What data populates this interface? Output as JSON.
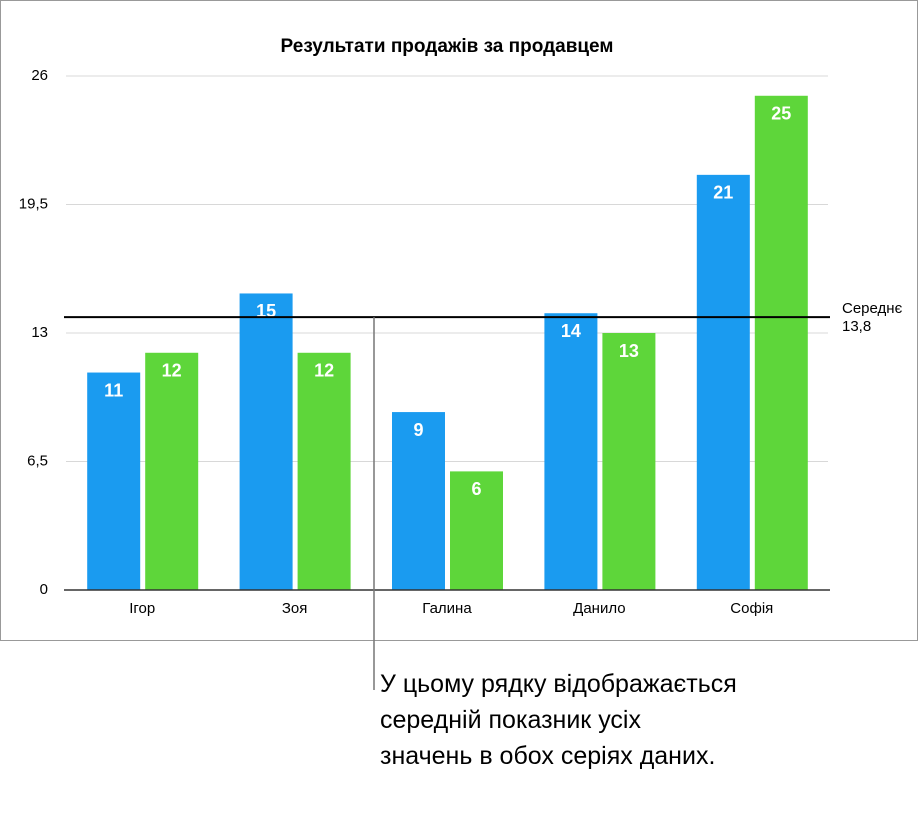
{
  "chart_data": {
    "type": "bar",
    "title": "Результати продажів за продавцем",
    "categories": [
      "Ігор",
      "Зоя",
      "Галина",
      "Данило",
      "Софія"
    ],
    "series": [
      {
        "color": "#1a9bf0",
        "values": [
          11,
          15,
          9,
          14,
          21
        ]
      },
      {
        "color": "#5ed63a",
        "values": [
          12,
          12,
          6,
          13,
          25
        ]
      }
    ],
    "ylim": [
      0,
      26
    ],
    "yticks": [
      0,
      {
        "value": 6.5,
        "label": "6,5"
      },
      13,
      {
        "value": 19.5,
        "label": "19,5"
      },
      26
    ],
    "grid": true,
    "average": {
      "value": 13.8,
      "label": "Середнє",
      "value_label": "13,8"
    },
    "annotation": "У цьому рядку відображається середній показник усіх значень в обох серіях даних."
  }
}
